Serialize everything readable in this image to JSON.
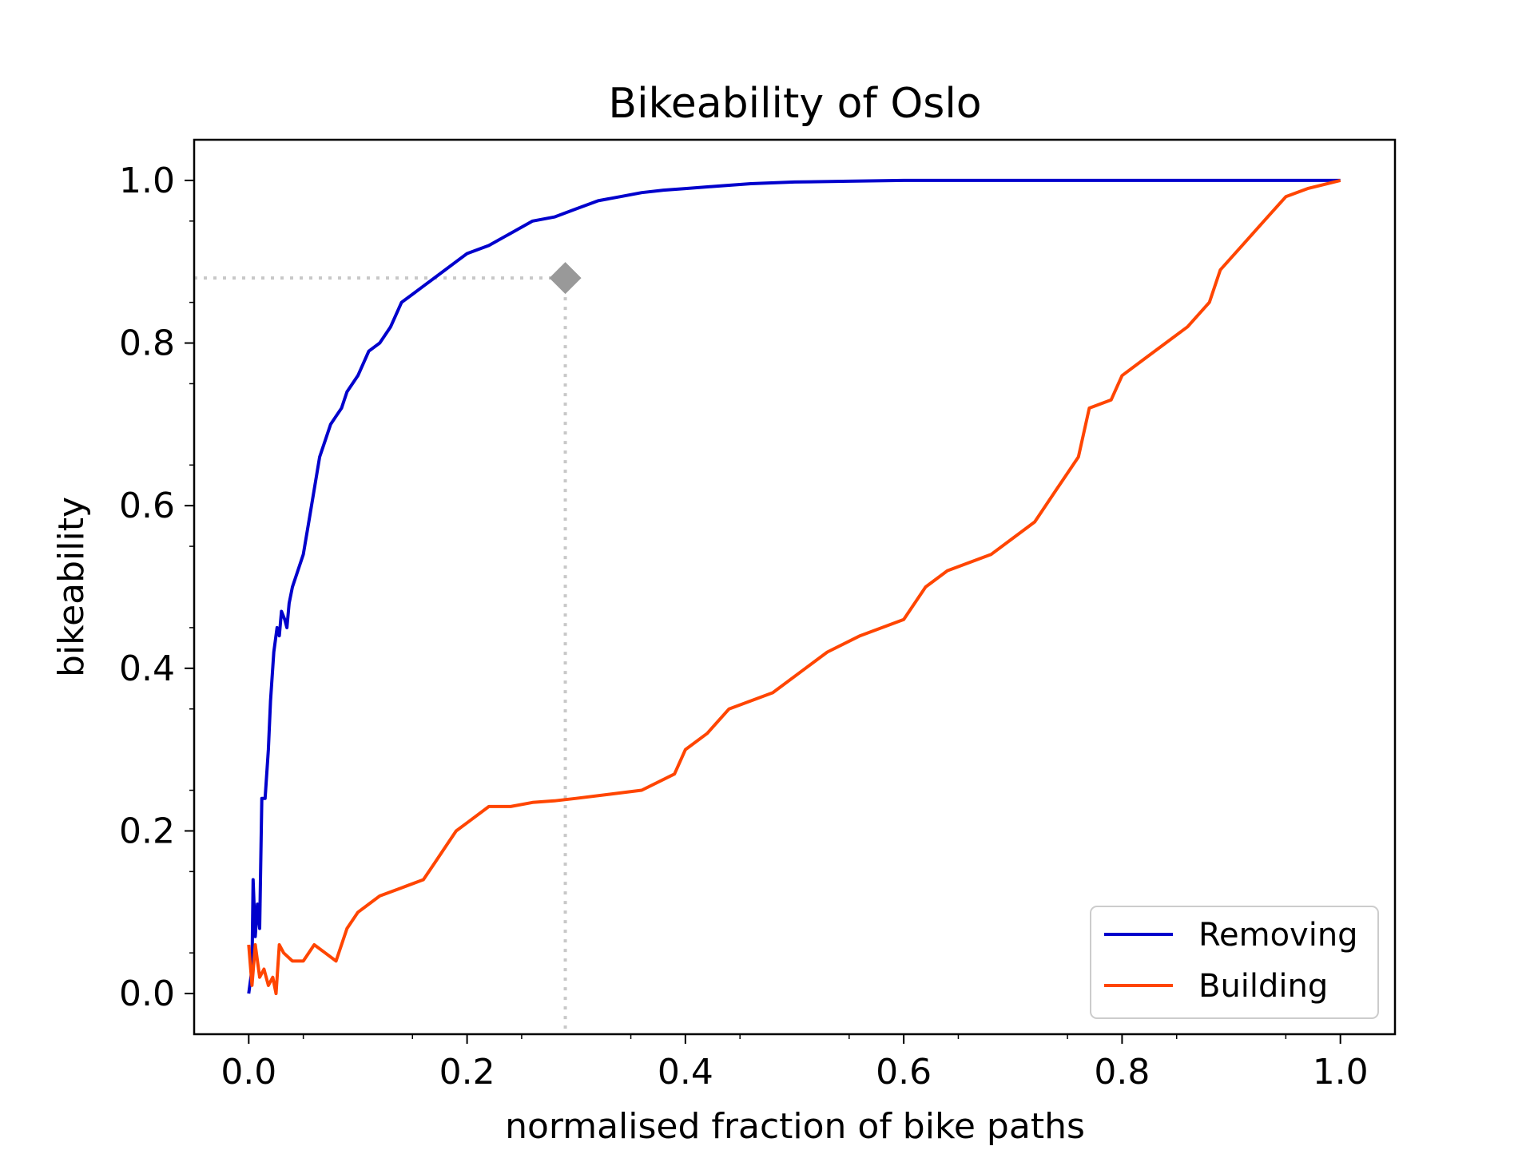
{
  "chart_data": {
    "type": "line",
    "title": "Bikeability of Oslo",
    "xlabel": "normalised fraction of bike paths",
    "ylabel": "bikeability",
    "xlim": [
      -0.05,
      1.05
    ],
    "ylim": [
      -0.05,
      1.05
    ],
    "xticks": [
      0.0,
      0.2,
      0.4,
      0.6,
      0.8,
      1.0
    ],
    "xtick_labels": [
      "0.0",
      "0.2",
      "0.4",
      "0.6",
      "0.8",
      "1.0"
    ],
    "yticks": [
      0.0,
      0.2,
      0.4,
      0.6,
      0.8,
      1.0
    ],
    "ytick_labels": [
      "0.0",
      "0.2",
      "0.4",
      "0.6",
      "0.8",
      "1.0"
    ],
    "grid": false,
    "legend_position": "bottom-right",
    "series": [
      {
        "name": "Removing",
        "color": "#0000cc",
        "x": [
          0.0,
          0.003,
          0.004,
          0.006,
          0.008,
          0.01,
          0.012,
          0.015,
          0.018,
          0.02,
          0.023,
          0.026,
          0.028,
          0.03,
          0.033,
          0.035,
          0.037,
          0.04,
          0.045,
          0.05,
          0.055,
          0.06,
          0.065,
          0.07,
          0.075,
          0.08,
          0.085,
          0.09,
          0.1,
          0.11,
          0.12,
          0.13,
          0.14,
          0.15,
          0.16,
          0.17,
          0.18,
          0.19,
          0.2,
          0.22,
          0.24,
          0.26,
          0.28,
          0.3,
          0.32,
          0.34,
          0.36,
          0.38,
          0.4,
          0.43,
          0.46,
          0.5,
          0.55,
          0.6,
          0.7,
          0.8,
          0.9,
          1.0
        ],
        "y": [
          0.0,
          0.03,
          0.14,
          0.07,
          0.11,
          0.08,
          0.24,
          0.24,
          0.3,
          0.36,
          0.42,
          0.45,
          0.44,
          0.47,
          0.46,
          0.45,
          0.48,
          0.5,
          0.52,
          0.54,
          0.58,
          0.62,
          0.66,
          0.68,
          0.7,
          0.71,
          0.72,
          0.74,
          0.76,
          0.79,
          0.8,
          0.82,
          0.85,
          0.86,
          0.87,
          0.88,
          0.89,
          0.9,
          0.91,
          0.92,
          0.935,
          0.95,
          0.955,
          0.965,
          0.975,
          0.98,
          0.985,
          0.988,
          0.99,
          0.993,
          0.996,
          0.998,
          0.999,
          1.0,
          1.0,
          1.0,
          1.0,
          1.0
        ]
      },
      {
        "name": "Building",
        "color": "#ff4500",
        "x": [
          0.0,
          0.003,
          0.006,
          0.01,
          0.014,
          0.018,
          0.022,
          0.025,
          0.028,
          0.032,
          0.04,
          0.05,
          0.06,
          0.07,
          0.08,
          0.09,
          0.1,
          0.11,
          0.12,
          0.14,
          0.16,
          0.17,
          0.18,
          0.19,
          0.2,
          0.22,
          0.24,
          0.26,
          0.28,
          0.3,
          0.33,
          0.36,
          0.39,
          0.4,
          0.42,
          0.44,
          0.48,
          0.51,
          0.53,
          0.56,
          0.6,
          0.62,
          0.64,
          0.68,
          0.7,
          0.72,
          0.74,
          0.75,
          0.76,
          0.77,
          0.79,
          0.8,
          0.82,
          0.84,
          0.86,
          0.88,
          0.89,
          0.91,
          0.93,
          0.95,
          0.97,
          1.0
        ],
        "y": [
          0.06,
          0.01,
          0.06,
          0.02,
          0.03,
          0.01,
          0.02,
          0.0,
          0.06,
          0.05,
          0.04,
          0.04,
          0.06,
          0.05,
          0.04,
          0.08,
          0.1,
          0.11,
          0.12,
          0.13,
          0.14,
          0.16,
          0.18,
          0.2,
          0.21,
          0.23,
          0.23,
          0.235,
          0.237,
          0.24,
          0.245,
          0.25,
          0.27,
          0.3,
          0.32,
          0.35,
          0.37,
          0.4,
          0.42,
          0.44,
          0.46,
          0.5,
          0.52,
          0.54,
          0.56,
          0.58,
          0.62,
          0.64,
          0.66,
          0.72,
          0.73,
          0.76,
          0.78,
          0.8,
          0.82,
          0.85,
          0.89,
          0.92,
          0.95,
          0.98,
          0.99,
          1.0
        ]
      }
    ],
    "marker": {
      "shape": "diamond",
      "color": "#999999",
      "x": 0.29,
      "y": 0.88
    },
    "reference_lines": {
      "color": "#c8c8c8",
      "style": "dotted"
    }
  }
}
